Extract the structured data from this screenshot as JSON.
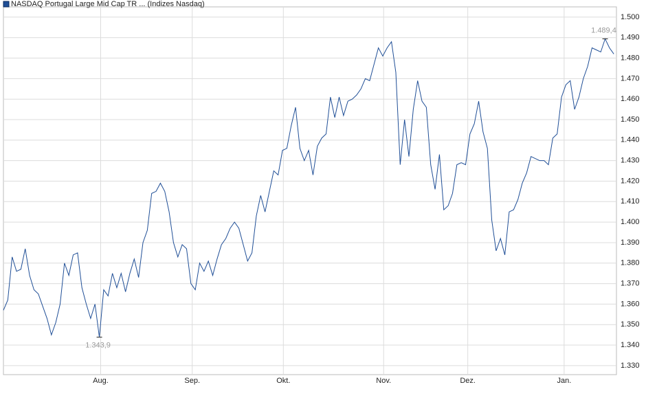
{
  "chart_data": {
    "type": "line",
    "title": "NASDAQ Portugal Large Mid Cap TR ... (Indizes Nasdaq)",
    "xlim": [
      0,
      140.6
    ],
    "xticks": [
      {
        "value": 22.3,
        "label": "Aug."
      },
      {
        "value": 43.3,
        "label": "Sep."
      },
      {
        "value": 64.2,
        "label": "Okt."
      },
      {
        "value": 87.2,
        "label": "Nov."
      },
      {
        "value": 106.5,
        "label": "Dez."
      },
      {
        "value": 128.6,
        "label": "Jan."
      }
    ],
    "ylim": [
      1.3256,
      1.505
    ],
    "yticks": [
      {
        "value": 1.33,
        "label": "1.330"
      },
      {
        "value": 1.34,
        "label": "1.340"
      },
      {
        "value": 1.35,
        "label": "1.350"
      },
      {
        "value": 1.36,
        "label": "1.360"
      },
      {
        "value": 1.37,
        "label": "1.370"
      },
      {
        "value": 1.38,
        "label": "1.380"
      },
      {
        "value": 1.39,
        "label": "1.390"
      },
      {
        "value": 1.4,
        "label": "1.400"
      },
      {
        "value": 1.41,
        "label": "1.410"
      },
      {
        "value": 1.42,
        "label": "1.420"
      },
      {
        "value": 1.43,
        "label": "1.430"
      },
      {
        "value": 1.44,
        "label": "1.440"
      },
      {
        "value": 1.45,
        "label": "1.450"
      },
      {
        "value": 1.46,
        "label": "1.460"
      },
      {
        "value": 1.47,
        "label": "1.470"
      },
      {
        "value": 1.48,
        "label": "1.480"
      },
      {
        "value": 1.49,
        "label": "1.490"
      },
      {
        "value": 1.5,
        "label": "1.500"
      }
    ],
    "grid": true,
    "series": [
      {
        "name": "NASDAQ Portugal Large Mid Cap TR ... (Indizes Nasdaq)",
        "color": "#1f4e96",
        "values": [
          1.357,
          1.362,
          1.383,
          1.376,
          1.377,
          1.387,
          1.374,
          1.367,
          1.365,
          1.359,
          1.353,
          1.345,
          1.351,
          1.36,
          1.38,
          1.374,
          1.384,
          1.385,
          1.368,
          1.36,
          1.353,
          1.36,
          1.3439,
          1.367,
          1.364,
          1.375,
          1.368,
          1.375,
          1.366,
          1.375,
          1.382,
          1.373,
          1.39,
          1.396,
          1.414,
          1.415,
          1.419,
          1.415,
          1.405,
          1.39,
          1.383,
          1.389,
          1.387,
          1.37,
          1.367,
          1.38,
          1.376,
          1.381,
          1.374,
          1.382,
          1.389,
          1.392,
          1.397,
          1.4,
          1.397,
          1.389,
          1.381,
          1.385,
          1.403,
          1.413,
          1.405,
          1.415,
          1.425,
          1.423,
          1.435,
          1.436,
          1.447,
          1.456,
          1.436,
          1.43,
          1.435,
          1.423,
          1.437,
          1.441,
          1.443,
          1.461,
          1.451,
          1.461,
          1.452,
          1.459,
          1.46,
          1.462,
          1.465,
          1.47,
          1.469,
          1.477,
          1.485,
          1.481,
          1.485,
          1.488,
          1.473,
          1.428,
          1.45,
          1.432,
          1.455,
          1.469,
          1.459,
          1.456,
          1.428,
          1.416,
          1.433,
          1.406,
          1.408,
          1.414,
          1.428,
          1.429,
          1.428,
          1.443,
          1.448,
          1.459,
          1.444,
          1.436,
          1.401,
          1.386,
          1.392,
          1.384,
          1.405,
          1.406,
          1.411,
          1.419,
          1.424,
          1.432,
          1.431,
          1.43,
          1.43,
          1.428,
          1.441,
          1.443,
          1.461,
          1.467,
          1.469,
          1.455,
          1.461,
          1.47,
          1.476,
          1.485,
          1.484,
          1.483,
          1.4894,
          1.485,
          1.482
        ]
      }
    ],
    "annotations": [
      {
        "text": "1.343,9",
        "x": 22,
        "y": 1.3439
      },
      {
        "text": "1.489,4",
        "x": 138,
        "y": 1.4894
      }
    ]
  }
}
